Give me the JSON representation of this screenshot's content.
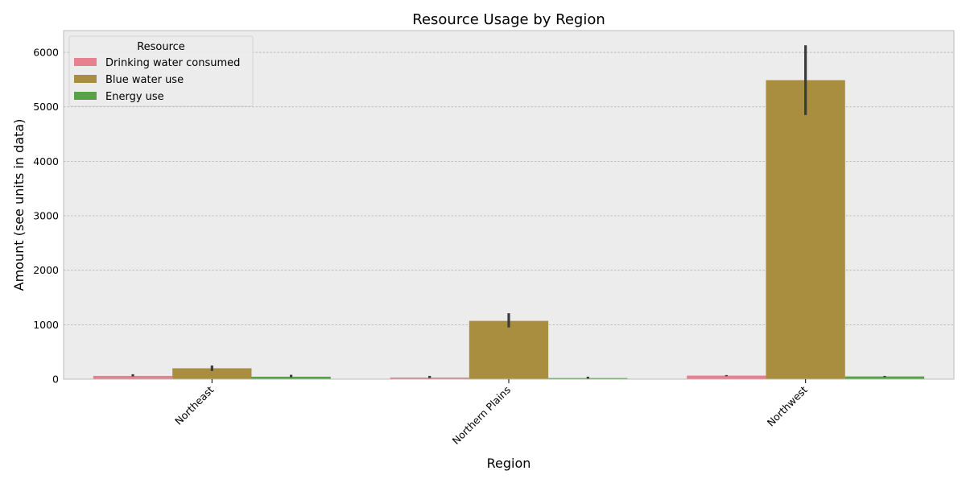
{
  "chart_data": {
    "type": "bar",
    "title": "Resource Usage by Region",
    "xlabel": "Region",
    "ylabel": "Amount (see units in data)",
    "categories": [
      "Northeast",
      "Northern Plains",
      "Northwest"
    ],
    "ylim": [
      0,
      6400
    ],
    "yticks": [
      0,
      1000,
      2000,
      3000,
      4000,
      5000,
      6000
    ],
    "grid": true,
    "legend": {
      "title": "Resource",
      "position": "top-left"
    },
    "series": [
      {
        "name": "Drinking water consumed",
        "color": "#e7808f",
        "values": [
          60,
          30,
          65
        ],
        "error": [
          [
            50,
            90
          ],
          [
            20,
            60
          ],
          [
            55,
            75
          ]
        ]
      },
      {
        "name": "Blue water use",
        "color": "#aa8e3f",
        "values": [
          200,
          1070,
          5490
        ],
        "error": [
          [
            150,
            250
          ],
          [
            950,
            1210
          ],
          [
            4850,
            6130
          ]
        ]
      },
      {
        "name": "Energy use",
        "color": "#55a443",
        "values": [
          45,
          20,
          50
        ],
        "error": [
          [
            35,
            80
          ],
          [
            10,
            45
          ],
          [
            40,
            60
          ]
        ]
      }
    ],
    "colors": {
      "plot_background": "#ececec",
      "grid": "#b0b0b0",
      "frame": "#bdbdbd",
      "error_bar": "#3b3b3b"
    }
  }
}
